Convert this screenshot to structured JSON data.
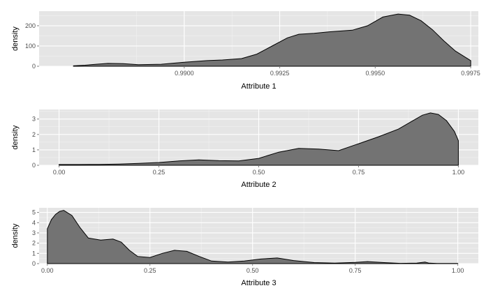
{
  "chart_data": [
    {
      "type": "area",
      "xlabel": "Attribute 1",
      "ylabel": "density",
      "xlim": [
        0.9862,
        0.9977
      ],
      "ylim": [
        0,
        272
      ],
      "x_ticks": [
        0.99,
        0.9925,
        0.995,
        0.9975
      ],
      "x_tick_labels": [
        "0.9900",
        "0.9925",
        "0.9950",
        "0.9975"
      ],
      "y_ticks": [
        0,
        100,
        200
      ],
      "y_tick_labels": [
        "0",
        "100",
        "200"
      ],
      "fill": "#737373",
      "grid": true,
      "x": [
        0.9871,
        0.9874,
        0.9877,
        0.988,
        0.9884,
        0.9888,
        0.9894,
        0.99,
        0.9906,
        0.991,
        0.9915,
        0.9919,
        0.9923,
        0.9927,
        0.993,
        0.9934,
        0.9938,
        0.9944,
        0.9948,
        0.9952,
        0.9956,
        0.9959,
        0.9962,
        0.9965,
        0.9968,
        0.9971,
        0.9975
      ],
      "y": [
        2,
        5,
        10,
        14,
        13,
        8,
        10,
        20,
        28,
        31,
        38,
        60,
        100,
        140,
        158,
        163,
        170,
        178,
        200,
        243,
        258,
        252,
        225,
        180,
        125,
        75,
        28
      ]
    },
    {
      "type": "area",
      "xlabel": "Attribute 2",
      "ylabel": "density",
      "xlim": [
        -0.05,
        1.05
      ],
      "ylim": [
        0,
        3.62
      ],
      "x_ticks": [
        0,
        0.25,
        0.5,
        0.75,
        1
      ],
      "x_tick_labels": [
        "0.00",
        "0.25",
        "0.50",
        "0.75",
        "1.00"
      ],
      "y_ticks": [
        0,
        1,
        2,
        3
      ],
      "y_tick_labels": [
        "0",
        "1",
        "2",
        "3"
      ],
      "fill": "#737373",
      "grid": true,
      "x": [
        0.0,
        0.05,
        0.1,
        0.15,
        0.2,
        0.25,
        0.3,
        0.35,
        0.4,
        0.45,
        0.5,
        0.55,
        0.6,
        0.65,
        0.7,
        0.75,
        0.8,
        0.85,
        0.88,
        0.91,
        0.93,
        0.95,
        0.97,
        0.99,
        1.0
      ],
      "y": [
        0.05,
        0.05,
        0.06,
        0.08,
        0.12,
        0.18,
        0.28,
        0.35,
        0.3,
        0.28,
        0.45,
        0.85,
        1.1,
        1.05,
        0.95,
        1.4,
        1.85,
        2.35,
        2.8,
        3.25,
        3.4,
        3.3,
        2.9,
        2.2,
        1.6
      ]
    },
    {
      "type": "area",
      "xlabel": "Attribute 3",
      "ylabel": "density",
      "xlim": [
        -0.02,
        1.05
      ],
      "ylim": [
        0,
        5.45
      ],
      "x_ticks": [
        0,
        0.25,
        0.5,
        0.75,
        1
      ],
      "x_tick_labels": [
        "0.00",
        "0.25",
        "0.50",
        "0.75",
        "1.00"
      ],
      "y_ticks": [
        0,
        1,
        2,
        3,
        4,
        5
      ],
      "y_tick_labels": [
        "0",
        "1",
        "2",
        "3",
        "4",
        "5"
      ],
      "fill": "#737373",
      "grid": true,
      "x": [
        0.0,
        0.01,
        0.02,
        0.03,
        0.04,
        0.06,
        0.08,
        0.1,
        0.13,
        0.16,
        0.18,
        0.2,
        0.22,
        0.25,
        0.28,
        0.31,
        0.34,
        0.37,
        0.4,
        0.44,
        0.48,
        0.52,
        0.56,
        0.6,
        0.65,
        0.7,
        0.75,
        0.78,
        0.82,
        0.86,
        0.9,
        0.92,
        0.93,
        0.95,
        1.0
      ],
      "y": [
        3.4,
        4.3,
        4.8,
        5.1,
        5.2,
        4.7,
        3.5,
        2.5,
        2.3,
        2.4,
        2.1,
        1.3,
        0.7,
        0.6,
        1.0,
        1.3,
        1.2,
        0.7,
        0.25,
        0.15,
        0.25,
        0.45,
        0.55,
        0.3,
        0.1,
        0.05,
        0.12,
        0.2,
        0.1,
        0.03,
        0.05,
        0.15,
        0.05,
        0.02,
        0.02
      ]
    }
  ]
}
